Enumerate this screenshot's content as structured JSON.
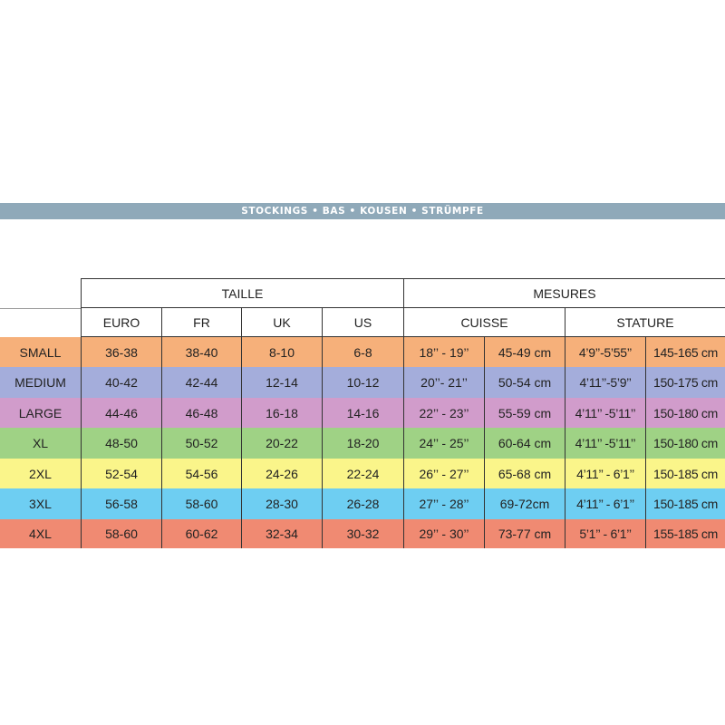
{
  "banner_text": "STOCKINGS • BAS • KOUSEN • STRÜMPFE",
  "header": {
    "group_taille": "TAILLE",
    "group_mesures": "MESURES",
    "euro": "EURO",
    "fr": "FR",
    "uk": "UK",
    "us": "US",
    "cuisse": "CUISSE",
    "stature": "STATURE"
  },
  "rows": [
    {
      "size": "SMALL",
      "euro": "36-38",
      "fr": "38-40",
      "uk": "8-10",
      "us": "6-8",
      "cuisse_in": "18’’ - 19’’",
      "cuisse_cm": "45-49 cm",
      "stature_ft": "4’9’’-5’55’’",
      "stature_cm": "145-165 cm",
      "color": "#f6b07a"
    },
    {
      "size": "MEDIUM",
      "euro": "40-42",
      "fr": "42-44",
      "uk": "12-14",
      "us": "10-12",
      "cuisse_in": "20’’- 21’’",
      "cuisse_cm": "50-54 cm",
      "stature_ft": "4’11’’-5’9’’",
      "stature_cm": "150-175 cm",
      "color": "#a4addb"
    },
    {
      "size": "LARGE",
      "euro": "44-46",
      "fr": "46-48",
      "uk": "16-18",
      "us": "14-16",
      "cuisse_in": "22’’ - 23’’",
      "cuisse_cm": "55-59 cm",
      "stature_ft": "4’11’’ -5’11’’",
      "stature_cm": "150-180 cm",
      "color": "#d19ccb"
    },
    {
      "size": "XL",
      "euro": "48-50",
      "fr": "50-52",
      "uk": "20-22",
      "us": "18-20",
      "cuisse_in": "24’’ - 25’’",
      "cuisse_cm": "60-64 cm",
      "stature_ft": "4’11’’ -5’11’’",
      "stature_cm": "150-180 cm",
      "color": "#9fd285"
    },
    {
      "size": "2XL",
      "euro": "52-54",
      "fr": "54-56",
      "uk": "24-26",
      "us": "22-24",
      "cuisse_in": "26’’ - 27’’",
      "cuisse_cm": "65-68 cm",
      "stature_ft": "4’11’’ - 6’1’’",
      "stature_cm": "150-185 cm",
      "color": "#faf58a"
    },
    {
      "size": "3XL",
      "euro": "56-58",
      "fr": "58-60",
      "uk": "28-30",
      "us": "26-28",
      "cuisse_in": "27’’ - 28’’",
      "cuisse_cm": "69-72cm",
      "stature_ft": "4’11’’ - 6’1’’",
      "stature_cm": "150-185 cm",
      "color": "#6ecef2"
    },
    {
      "size": "4XL",
      "euro": "58-60",
      "fr": "60-62",
      "uk": "32-34",
      "us": "30-32",
      "cuisse_in": "29’’ - 30’’",
      "cuisse_cm": "73-77 cm",
      "stature_ft": "5’1’’ - 6’1’’",
      "stature_cm": "155-185 cm",
      "color": "#f08a72"
    }
  ]
}
